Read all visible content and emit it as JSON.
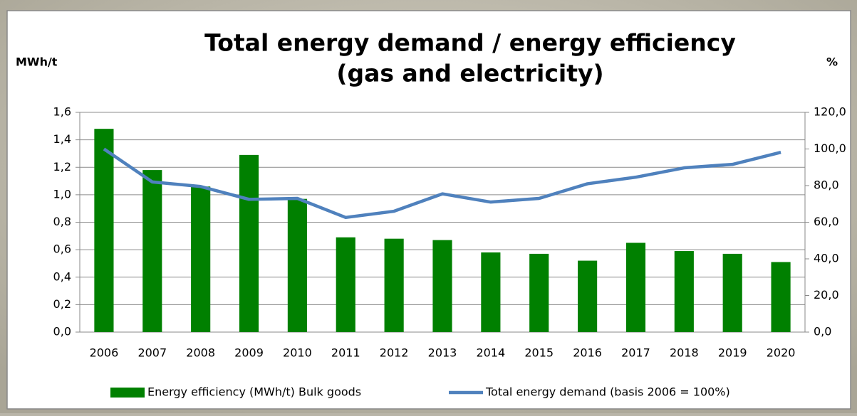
{
  "chart_data": {
    "type": "bar_line",
    "title": [
      "Total energy demand / energy efficiency",
      "(gas and electricity)"
    ],
    "y_label": "MWh/t",
    "y2_label": "%",
    "categories": [
      "2006",
      "2007",
      "2008",
      "2009",
      "2010",
      "2011",
      "2012",
      "2013",
      "2014",
      "2015",
      "2016",
      "2017",
      "2018",
      "2019",
      "2020"
    ],
    "series": [
      {
        "name": "Energy efficiency (MWh/t) Bulk goods",
        "type": "bar",
        "color": "#008000",
        "axis": "y",
        "values": [
          1.48,
          1.18,
          1.06,
          1.29,
          0.97,
          0.69,
          0.68,
          0.67,
          0.58,
          0.57,
          0.52,
          0.65,
          0.59,
          0.57,
          0.51
        ]
      },
      {
        "name": "Total energy demand (basis 2006 = 100%)",
        "type": "line",
        "color": "#4f81bd",
        "axis": "y2",
        "values": [
          100,
          82,
          79.5,
          72.5,
          73,
          62.6,
          66,
          75.5,
          71,
          73,
          81,
          84.6,
          89.7,
          91.6,
          98.2
        ]
      }
    ],
    "ylim": [
      0,
      1.6
    ],
    "yticks": [
      {
        "value": 0,
        "label": "0,0"
      },
      {
        "value": 0.2,
        "label": "0,2"
      },
      {
        "value": 0.4,
        "label": "0,4"
      },
      {
        "value": 0.6,
        "label": "0,6"
      },
      {
        "value": 0.8,
        "label": "0,8"
      },
      {
        "value": 1,
        "label": "1,0"
      },
      {
        "value": 1.2,
        "label": "1,2"
      },
      {
        "value": 1.4,
        "label": "1,4"
      },
      {
        "value": 1.6,
        "label": "1,6"
      }
    ],
    "y2lim": [
      0,
      120
    ],
    "y2ticks": [
      {
        "value": 0,
        "label": "0,0"
      },
      {
        "value": 20,
        "label": "20,0"
      },
      {
        "value": 40,
        "label": "40,0"
      },
      {
        "value": 60,
        "label": "60,0"
      },
      {
        "value": 80,
        "label": "80,0"
      },
      {
        "value": 100,
        "label": "100,0"
      },
      {
        "value": 120,
        "label": "120,0"
      }
    ],
    "grid": true,
    "legend": "bottom"
  }
}
